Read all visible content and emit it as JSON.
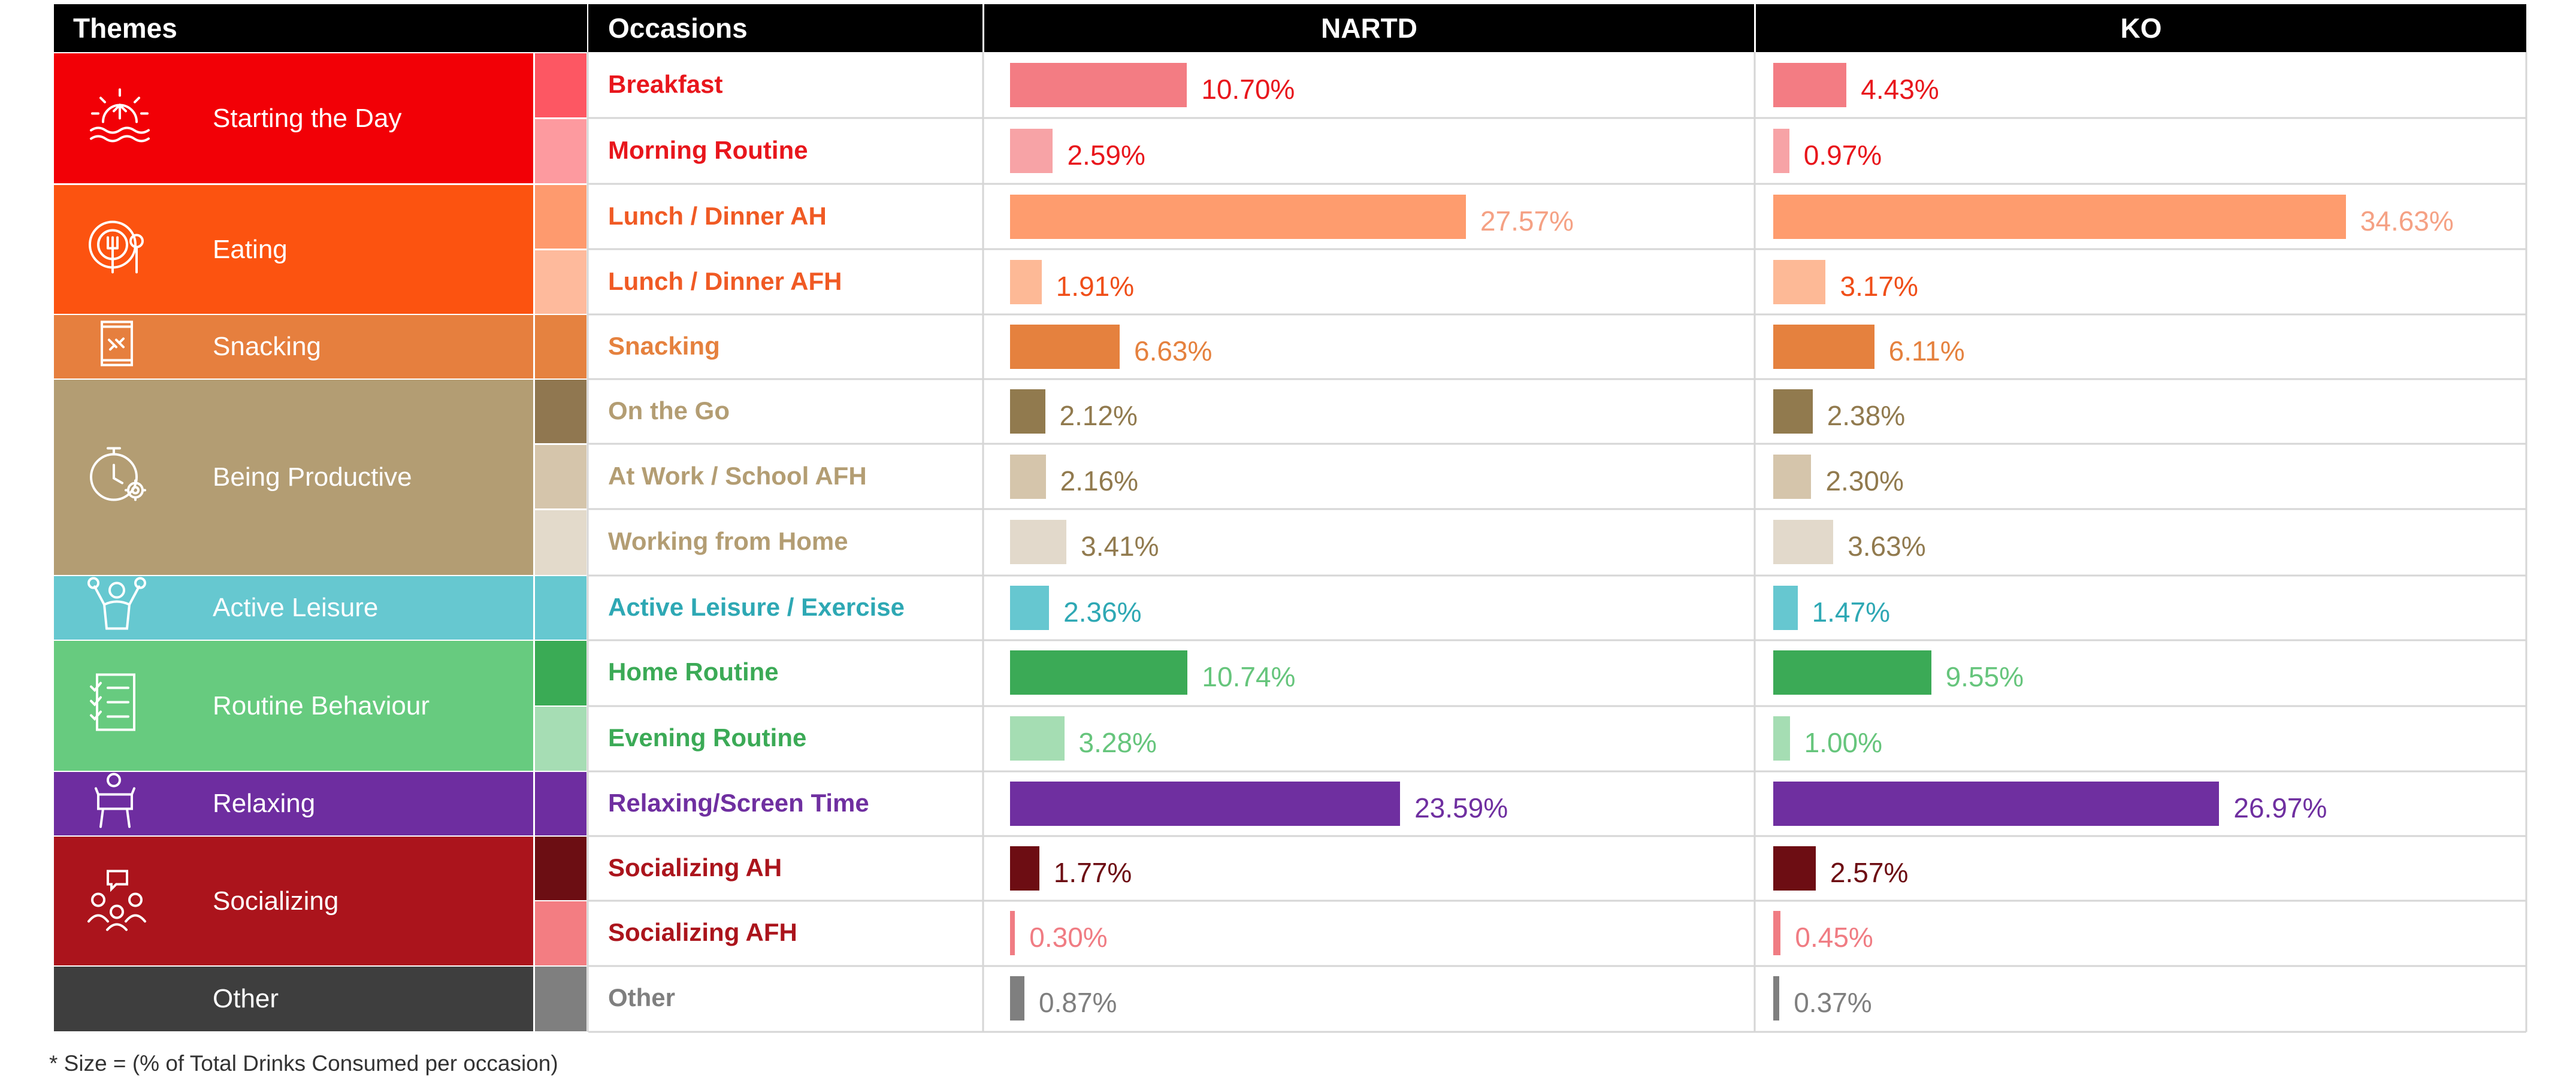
{
  "headers": {
    "themes": "Themes",
    "occasions": "Occasions",
    "nartd": "NARTD",
    "ko": "KO"
  },
  "footnote": "* Size = (% of Total Drinks Consumed per occasion)",
  "themes": [
    {
      "label": "Starting the Day",
      "color": "#F20006",
      "icon": "sunrise-icon"
    },
    {
      "label": "Eating",
      "color": "#FC5310",
      "icon": "plate-fork-icon"
    },
    {
      "label": "Snacking",
      "color": "#E67F3E",
      "icon": "snack-bag-icon"
    },
    {
      "label": "Being Productive",
      "color": "#B39D73",
      "icon": "stopwatch-gear-icon"
    },
    {
      "label": "Active Leisure",
      "color": "#66C8D0",
      "icon": "exercise-person-icon"
    },
    {
      "label": "Routine Behaviour",
      "color": "#67CB7F",
      "icon": "checklist-icon"
    },
    {
      "label": "Relaxing",
      "color": "#6E2DA0",
      "icon": "armchair-person-icon"
    },
    {
      "label": "Socializing",
      "color": "#AB141C",
      "icon": "people-chat-icon"
    },
    {
      "label": "Other",
      "color": "#3E3E3E",
      "icon": ""
    }
  ],
  "chart_data": {
    "type": "bar",
    "title": "",
    "xlabel": "% of Total Drinks Consumed per occasion",
    "ylabel": "Occasions",
    "xlim": [
      0,
      36
    ],
    "categories": [
      "Breakfast",
      "Morning Routine",
      "Lunch / Dinner AH",
      "Lunch / Dinner AFH",
      "Snacking",
      "On the Go",
      "At Work / School AFH",
      "Working from Home",
      "Active Leisure / Exercise",
      "Home Routine",
      "Evening Routine",
      "Relaxing/Screen Time",
      "Socializing AH",
      "Socializing AFH",
      "Other"
    ],
    "series": [
      {
        "name": "NARTD",
        "values": [
          10.7,
          2.59,
          27.57,
          1.91,
          6.63,
          2.12,
          2.16,
          3.41,
          2.36,
          10.74,
          3.28,
          23.59,
          1.77,
          0.3,
          0.87
        ],
        "labels": [
          "10.70%",
          "2.59%",
          "27.57%",
          "1.91%",
          "6.63%",
          "2.12%",
          "2.16%",
          "3.41%",
          "2.36%",
          "10.74%",
          "3.28%",
          "23.59%",
          "1.77%",
          "0.30%",
          "0.87%"
        ]
      },
      {
        "name": "KO",
        "values": [
          4.43,
          0.97,
          34.63,
          3.17,
          6.11,
          2.38,
          2.3,
          3.63,
          1.47,
          9.55,
          1.0,
          26.97,
          2.57,
          0.45,
          0.37
        ],
        "labels": [
          "4.43%",
          "0.97%",
          "34.63%",
          "3.17%",
          "6.11%",
          "2.38%",
          "2.30%",
          "3.63%",
          "1.47%",
          "9.55%",
          "1.00%",
          "26.97%",
          "2.57%",
          "0.45%",
          "0.37%"
        ]
      }
    ],
    "theme_of_category": [
      0,
      0,
      1,
      1,
      2,
      3,
      3,
      3,
      4,
      5,
      5,
      6,
      7,
      7,
      8
    ],
    "bar_colors": [
      "#F37C83",
      "#F7A3A6",
      "#FE9C6E",
      "#FDB996",
      "#E5813E",
      "#917A4E",
      "#D5C5AB",
      "#E2D9CB",
      "#66C7D0",
      "#3BAA56",
      "#A5DDB3",
      "#6F2FA0",
      "#6D0D13",
      "#F07C83",
      "#7F7F7F"
    ],
    "label_colors": [
      "#E8161C",
      "#E8161C",
      "#F5A184",
      "#F04E18",
      "#E5813E",
      "#917A4E",
      "#917A4E",
      "#917A4E",
      "#2EA8B4",
      "#66C57C",
      "#66C57C",
      "#6F2FA0",
      "#6D0D13",
      "#F07C83",
      "#7F7F7F"
    ],
    "occasion_colors": [
      "#E8161C",
      "#E8161C",
      "#F05A24",
      "#F05A24",
      "#E5813E",
      "#B39D73",
      "#B39D73",
      "#B39D73",
      "#2EA8B4",
      "#3BAA56",
      "#3BAA56",
      "#6F2FA0",
      "#AB141C",
      "#AB141C",
      "#7F7F7F"
    ]
  }
}
